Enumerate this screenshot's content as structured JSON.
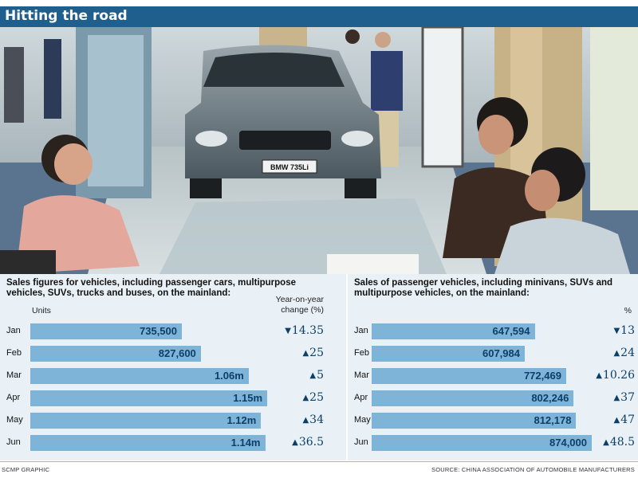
{
  "title": "Hitting the road",
  "left_chart": {
    "heading_line1": "Sales figures for vehicles, including passenger cars, multipurpose",
    "heading_line2": "vehicles, SUVs, trucks and buses, on the mainland:",
    "units_label": "Units",
    "change_label_line1": "Year-on-year",
    "change_label_line2": "change (%)"
  },
  "right_chart": {
    "heading_line1": "Sales of passenger vehicles, including minivans, SUVs and",
    "heading_line2": "multipurpose vehicles, on the mainland:",
    "pct_label": "%"
  },
  "chart_data": [
    {
      "type": "bar",
      "orientation": "horizontal",
      "categories": [
        "Jan",
        "Feb",
        "Mar",
        "Apr",
        "May",
        "Jun"
      ],
      "values": [
        735500,
        827600,
        1060000,
        1150000,
        1120000,
        1140000
      ],
      "value_labels": [
        "735,500",
        "827,600",
        "1.06m",
        "1.15m",
        "1.12m",
        "1.14m"
      ],
      "change_values": [
        -14.35,
        25,
        5,
        25,
        34,
        36.5
      ],
      "change_labels": [
        "14.35",
        "25",
        "5",
        "25",
        "34",
        "36.5"
      ],
      "xlim": [
        0,
        1200000
      ],
      "bar_color": "#7eb4d8"
    },
    {
      "type": "bar",
      "orientation": "horizontal",
      "categories": [
        "Jan",
        "Feb",
        "Mar",
        "Apr",
        "May",
        "Jun"
      ],
      "values": [
        647594,
        607984,
        772469,
        802246,
        812178,
        874000
      ],
      "value_labels": [
        "647,594",
        "607,984",
        "772,469",
        "802,246",
        "812,178",
        "874,000"
      ],
      "change_values": [
        -13,
        24,
        10.26,
        37,
        47,
        48.5
      ],
      "change_labels": [
        "13",
        "24",
        "10.26",
        "37",
        "47",
        "48.5"
      ],
      "xlim": [
        0,
        950000
      ],
      "bar_color": "#7eb4d8"
    }
  ],
  "footer": {
    "left": "SCMP GRAPHIC",
    "right": "SOURCE: CHINA ASSOCIATION OF AUTOMOBILE MANUFACTURERS"
  },
  "photo": {
    "plate_text": "BMW 735Li"
  }
}
